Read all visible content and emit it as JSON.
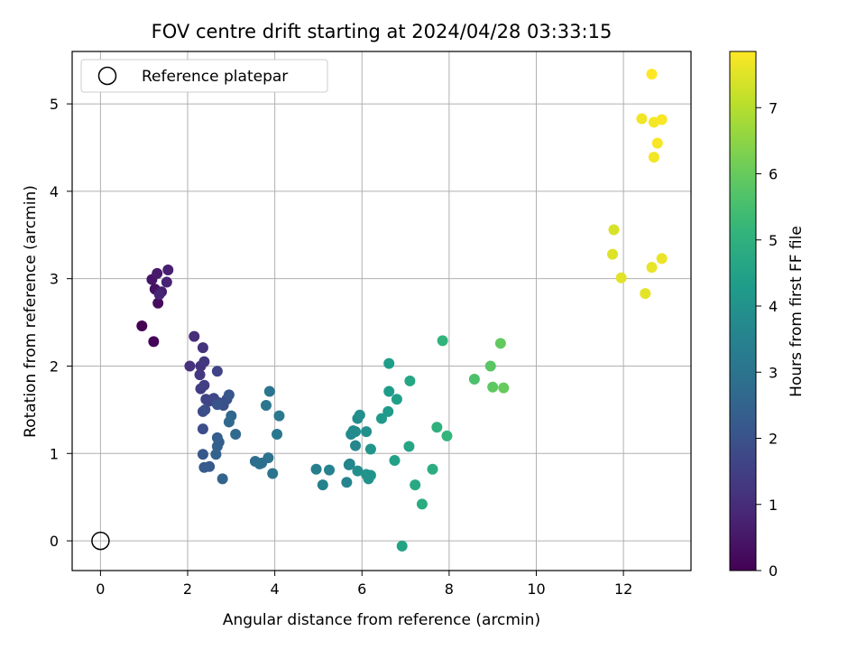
{
  "chart_data": {
    "type": "scatter",
    "title": "FOV centre drift starting at 2024/04/28 03:33:15",
    "xlabel": "Angular distance from reference (arcmin)",
    "ylabel": "Rotation from reference (arcmin)",
    "xlim": [
      -0.65,
      13.55
    ],
    "ylim": [
      -0.34,
      5.6
    ],
    "xticks": [
      0,
      2,
      4,
      6,
      8,
      10,
      12
    ],
    "yticks": [
      0,
      1,
      2,
      3,
      4,
      5
    ],
    "grid": true,
    "legend": {
      "position": "top-left",
      "entries": [
        "Reference platepar"
      ]
    },
    "reference_point": {
      "x": 0,
      "y": 0
    },
    "colorbar": {
      "label": "Hours from first FF file",
      "colormap": "viridis",
      "range": [
        0,
        7.85
      ],
      "ticks": [
        0,
        1,
        2,
        3,
        4,
        5,
        6,
        7
      ]
    },
    "series": [
      {
        "x": [
          0.95,
          1.22,
          1.32,
          1.25,
          1.18,
          1.3,
          1.4,
          1.55,
          1.52,
          1.35
        ],
        "y": [
          2.46,
          2.28,
          2.72,
          2.88,
          2.99,
          3.06,
          2.85,
          3.1,
          2.96,
          2.82
        ],
        "c": [
          0.0,
          0.1,
          0.25,
          0.35,
          0.45,
          0.55,
          0.6,
          0.7,
          0.75,
          0.8
        ]
      },
      {
        "x": [
          2.15,
          2.05,
          2.35,
          2.3,
          2.38,
          2.28,
          2.3,
          2.38,
          2.42,
          2.68,
          2.5,
          2.6,
          2.72,
          2.35,
          2.35,
          2.4,
          2.82,
          2.9,
          2.68,
          2.95,
          2.35,
          2.5,
          2.38
        ],
        "y": [
          2.34,
          2.0,
          2.21,
          2.0,
          2.05,
          1.9,
          1.74,
          1.78,
          1.62,
          1.94,
          1.6,
          1.63,
          1.58,
          1.48,
          1.28,
          1.5,
          1.55,
          1.62,
          1.56,
          1.67,
          0.99,
          0.85,
          0.84
        ],
        "c": [
          1.0,
          1.1,
          1.15,
          1.2,
          1.25,
          1.3,
          1.4,
          1.5,
          1.55,
          1.6,
          1.65,
          1.7,
          1.75,
          1.8,
          1.85,
          1.9,
          1.95,
          2.0,
          2.05,
          2.1,
          2.15,
          2.2,
          2.25
        ]
      },
      {
        "x": [
          2.68,
          2.72,
          2.68,
          2.65,
          2.8,
          3.0,
          2.95,
          3.1,
          3.55,
          3.65,
          3.7,
          3.85,
          3.95,
          3.88,
          3.8,
          4.05,
          4.1
        ],
        "y": [
          1.18,
          1.13,
          1.08,
          0.99,
          0.71,
          1.43,
          1.36,
          1.22,
          0.91,
          0.88,
          0.89,
          0.95,
          0.77,
          1.71,
          1.55,
          1.22,
          1.43
        ],
        "c": [
          2.3,
          2.35,
          2.4,
          2.45,
          2.5,
          2.6,
          2.65,
          2.7,
          2.8,
          2.85,
          2.9,
          2.95,
          3.0,
          3.05,
          3.1,
          3.15,
          3.2
        ]
      },
      {
        "x": [
          4.95,
          5.1,
          5.25,
          5.65,
          5.7,
          5.75,
          5.85,
          5.9,
          5.95,
          5.9,
          6.1,
          6.15,
          6.2,
          5.85,
          5.8,
          6.1,
          6.2,
          5.72
        ],
        "y": [
          0.82,
          0.64,
          0.81,
          0.67,
          0.87,
          1.22,
          1.25,
          1.4,
          1.44,
          0.8,
          1.25,
          0.71,
          0.75,
          1.09,
          1.26,
          0.76,
          1.05,
          0.88
        ],
        "c": [
          3.4,
          3.45,
          3.5,
          3.55,
          3.6,
          3.7,
          3.75,
          3.8,
          3.85,
          3.9,
          3.95,
          4.0,
          4.05,
          3.65,
          3.78,
          4.02,
          4.08,
          3.58
        ]
      },
      {
        "x": [
          6.45,
          6.6,
          6.62,
          6.62,
          6.8,
          6.75,
          6.92,
          7.08,
          7.1,
          7.22,
          7.38,
          7.62,
          7.72,
          7.85,
          7.95
        ],
        "y": [
          1.4,
          1.48,
          1.71,
          2.03,
          1.62,
          0.92,
          -0.06,
          1.08,
          1.83,
          0.64,
          0.42,
          0.82,
          1.3,
          2.29,
          1.2
        ],
        "c": [
          4.2,
          4.25,
          4.3,
          4.35,
          4.4,
          4.45,
          4.5,
          4.6,
          4.65,
          4.7,
          4.8,
          4.9,
          5.0,
          5.1,
          5.2
        ]
      },
      {
        "x": [
          8.58,
          8.95,
          9.0,
          9.18,
          9.25
        ],
        "y": [
          1.85,
          2.0,
          1.76,
          2.26,
          1.75
        ],
        "c": [
          5.6,
          5.8,
          5.85,
          5.95,
          6.0
        ]
      },
      {
        "x": [
          11.78,
          11.75,
          11.95,
          12.5,
          12.65,
          12.88
        ],
        "y": [
          3.56,
          3.28,
          3.01,
          2.83,
          3.13,
          3.23
        ],
        "c": [
          7.4,
          7.45,
          7.5,
          7.55,
          7.6,
          7.65
        ]
      },
      {
        "x": [
          12.65,
          12.42,
          12.7,
          12.88,
          12.78,
          12.7
        ],
        "y": [
          5.34,
          4.83,
          4.79,
          4.82,
          4.55,
          4.39
        ],
        "c": [
          7.85,
          7.7,
          7.75,
          7.8,
          7.78,
          7.72
        ]
      }
    ]
  }
}
